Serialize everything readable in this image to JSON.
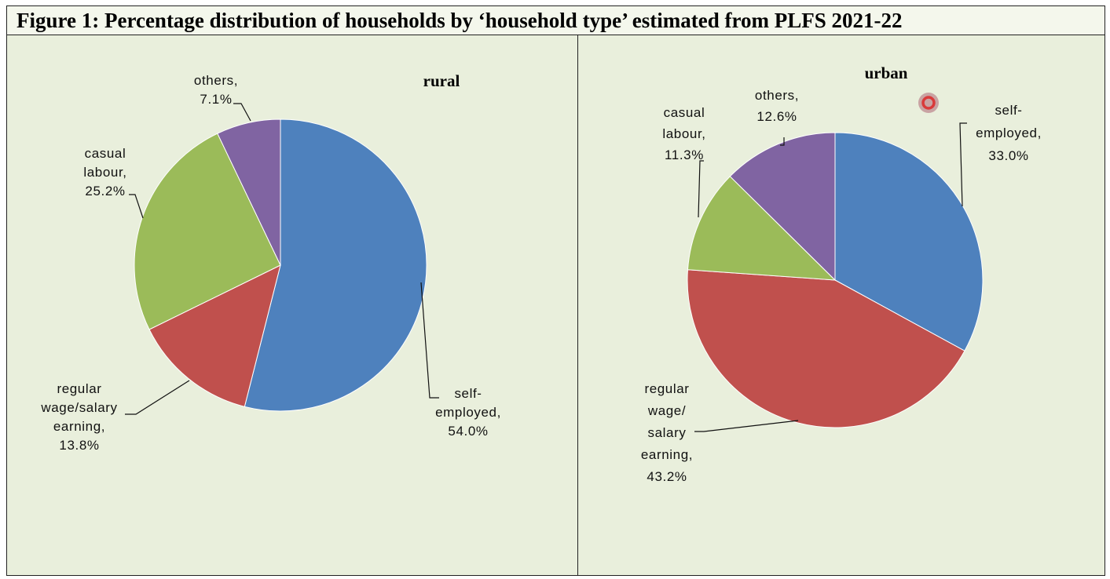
{
  "figure": {
    "title": "Figure 1: Percentage distribution of households by ‘household type’ estimated from PLFS 2021-22"
  },
  "colors": {
    "self_employed": "#4e81bd",
    "regular_wage": "#c0504d",
    "casual_labour": "#9bbb59",
    "others": "#8064a2",
    "panel_bg": "#e9efdc",
    "marker": "#d93a3a"
  },
  "chart_data": [
    {
      "type": "pie",
      "title": "rural",
      "slices": [
        {
          "key": "self_employed",
          "label": [
            "self-",
            "employed,",
            "54.0%"
          ],
          "value": 54.0
        },
        {
          "key": "regular_wage",
          "label": [
            "regular",
            "wage/salary",
            "earning,",
            "13.8%"
          ],
          "value": 13.8
        },
        {
          "key": "casual_labour",
          "label": [
            "casual",
            "labour,",
            "25.2%"
          ],
          "value": 25.2
        },
        {
          "key": "others",
          "label": [
            "others,",
            "7.1%"
          ],
          "value": 7.1
        }
      ]
    },
    {
      "type": "pie",
      "title": "urban",
      "slices": [
        {
          "key": "self_employed",
          "label": [
            "self-",
            "employed,",
            "33.0%"
          ],
          "value": 33.0
        },
        {
          "key": "regular_wage",
          "label": [
            "regular",
            "wage/",
            "salary",
            "earning,",
            "43.2%"
          ],
          "value": 43.2
        },
        {
          "key": "casual_labour",
          "label": [
            "casual",
            "labour,",
            "11.3%"
          ],
          "value": 11.3
        },
        {
          "key": "others",
          "label": [
            "others,",
            "12.6%"
          ],
          "value": 12.6
        }
      ]
    }
  ]
}
